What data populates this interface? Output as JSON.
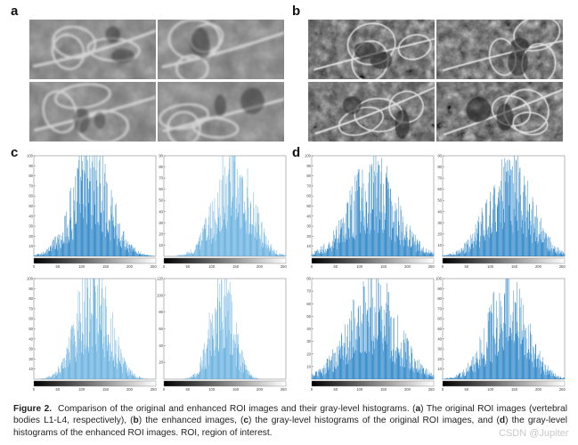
{
  "panel_labels": {
    "a": "a",
    "b": "b",
    "c": "c",
    "d": "d"
  },
  "histograms": {
    "c": [
      {
        "ylim": [
          0,
          100
        ],
        "y_ticks": [
          "10",
          "20",
          "30",
          "40",
          "50",
          "60",
          "70",
          "80",
          "90",
          "100"
        ],
        "x_ticks": [
          "0",
          "50",
          "100",
          "150",
          "200",
          "250"
        ],
        "peak": 100,
        "mean": 120,
        "sd": 40,
        "color": "#1d7dc4"
      },
      {
        "ylim": [
          0,
          90
        ],
        "y_ticks": [
          "10",
          "20",
          "30",
          "40",
          "50",
          "60",
          "70",
          "80",
          "90"
        ],
        "x_ticks": [
          "0",
          "50",
          "100",
          "150",
          "200",
          "250"
        ],
        "peak": 88,
        "mean": 145,
        "sd": 38,
        "color": "#5aa9dd"
      },
      {
        "ylim": [
          0,
          100
        ],
        "y_ticks": [
          "10",
          "20",
          "30",
          "40",
          "50",
          "60",
          "70",
          "80",
          "90",
          "100"
        ],
        "x_ticks": [
          "0",
          "50",
          "100",
          "150",
          "200",
          "250"
        ],
        "peak": 110,
        "mean": 125,
        "sd": 34,
        "color": "#5aa9dd"
      },
      {
        "ylim": [
          0,
          120
        ],
        "y_ticks": [
          "20",
          "40",
          "60",
          "80",
          "100",
          "120"
        ],
        "x_ticks": [
          "0",
          "50",
          "100",
          "150",
          "200",
          "250"
        ],
        "peak": 125,
        "mean": 122,
        "sd": 24,
        "color": "#5aa9dd"
      }
    ],
    "d": [
      {
        "ylim": [
          0,
          100
        ],
        "y_ticks": [
          "10",
          "20",
          "30",
          "40",
          "50",
          "60",
          "70",
          "80",
          "90",
          "100"
        ],
        "x_ticks": [
          "0",
          "50",
          "100",
          "150",
          "200",
          "250"
        ],
        "peak": 85,
        "mean": 128,
        "sd": 50,
        "color": "#1d7dc4"
      },
      {
        "ylim": [
          0,
          90
        ],
        "y_ticks": [
          "10",
          "20",
          "30",
          "40",
          "50",
          "60",
          "70",
          "80",
          "90"
        ],
        "x_ticks": [
          "0",
          "50",
          "100",
          "150",
          "200",
          "250"
        ],
        "peak": 78,
        "mean": 140,
        "sd": 46,
        "color": "#1d7dc4"
      },
      {
        "ylim": [
          0,
          80
        ],
        "y_ticks": [
          "10",
          "20",
          "30",
          "40",
          "50",
          "60",
          "70",
          "80"
        ],
        "x_ticks": [
          "0",
          "50",
          "100",
          "150",
          "200",
          "250"
        ],
        "peak": 72,
        "mean": 128,
        "sd": 52,
        "color": "#1d7dc4"
      },
      {
        "ylim": [
          0,
          100
        ],
        "y_ticks": [
          "10",
          "20",
          "30",
          "40",
          "50",
          "60",
          "70",
          "80",
          "90",
          "100"
        ],
        "x_ticks": [
          "0",
          "50",
          "100",
          "150",
          "200",
          "250"
        ],
        "peak": 88,
        "mean": 135,
        "sd": 42,
        "color": "#1d7dc4"
      }
    ]
  },
  "caption": {
    "figure_label": "Figure 2.",
    "segments": [
      "Comparison of the original and enhanced ROI images and their gray-level histograms. (",
      "a",
      ") The original ROI images (vertebral bodies L1-L4, respectively), (",
      "b",
      ") the enhanced images, (",
      "c",
      ") the gray-level histograms of the original ROI images, and (",
      "d",
      ") the gray-level histograms of the enhanced ROI images. ROI, region of interest."
    ]
  },
  "watermark": "CSDN @Jupiter"
}
